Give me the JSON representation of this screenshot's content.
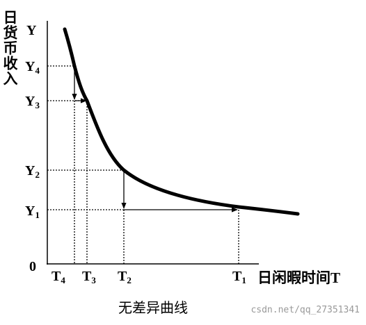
{
  "y_axis": {
    "title": "日货币收入",
    "letter": "Y",
    "origin": "0",
    "ticks": [
      {
        "name": "Y",
        "sub": "4"
      },
      {
        "name": "Y",
        "sub": "3"
      },
      {
        "name": "Y",
        "sub": "2"
      },
      {
        "name": "Y",
        "sub": "1"
      }
    ]
  },
  "x_axis": {
    "title": "日闲暇时间T",
    "ticks": [
      {
        "name": "T",
        "sub": "4"
      },
      {
        "name": "T",
        "sub": "3"
      },
      {
        "name": "T",
        "sub": "2"
      },
      {
        "name": "T",
        "sub": "1"
      }
    ]
  },
  "caption": "无差异曲线",
  "watermark": "csdn.net/qq_27351341"
}
